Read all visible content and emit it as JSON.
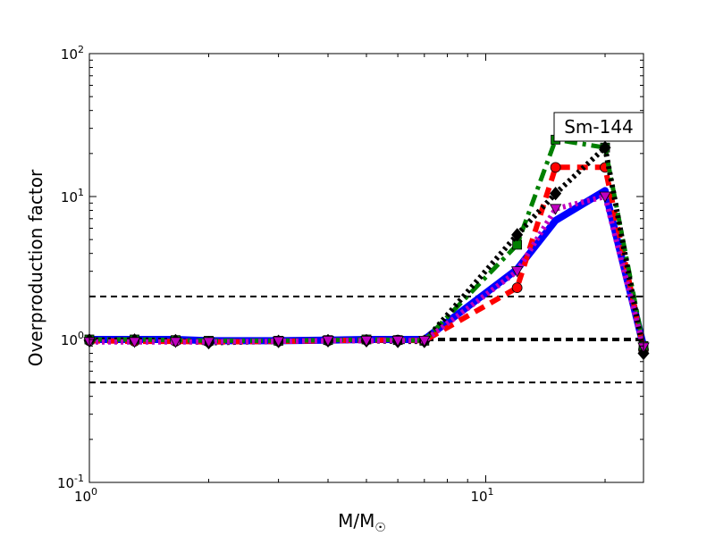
{
  "chart_data": {
    "type": "line",
    "title": "",
    "xlabel": "M/M",
    "xlabel_sub": "☉",
    "ylabel": "Overproduction factor",
    "xscale": "log",
    "yscale": "log",
    "xlim": [
      1,
      25
    ],
    "ylim": [
      0.1,
      100
    ],
    "x_ticks": [
      {
        "value": 1,
        "base": "10",
        "exp": "0"
      },
      {
        "value": 10,
        "base": "10",
        "exp": "1"
      }
    ],
    "y_ticks": [
      {
        "value": 0.1,
        "base": "10",
        "exp": "-1"
      },
      {
        "value": 1,
        "base": "10",
        "exp": "0"
      },
      {
        "value": 10,
        "base": "10",
        "exp": "1"
      },
      {
        "value": 100,
        "base": "10",
        "exp": "2"
      }
    ],
    "reference_lines": [
      {
        "y": 2.0,
        "style": "dashed",
        "color": "#000000",
        "weight": "thin"
      },
      {
        "y": 1.0,
        "style": "dashed",
        "color": "#000000",
        "weight": "thick"
      },
      {
        "y": 0.5,
        "style": "dashed",
        "color": "#000000",
        "weight": "thin"
      }
    ],
    "annotation": "Sm-144",
    "legend": "none",
    "grid": false,
    "series": [
      {
        "color": "#0000ff",
        "style": "solid",
        "marker": "none",
        "x": [
          1.0,
          1.3,
          1.65,
          2.0,
          3.0,
          4.0,
          5.0,
          6.0,
          7.0,
          12.0,
          15.0,
          20.0,
          25.0
        ],
        "y": [
          1.0,
          1.0,
          1.0,
          0.98,
          0.98,
          0.99,
          1.0,
          1.0,
          1.0,
          3.1,
          6.8,
          11.0,
          0.9
        ]
      },
      {
        "color": "#ff0000",
        "style": "dashed",
        "marker": "o",
        "x": [
          1.0,
          1.3,
          1.65,
          2.0,
          3.0,
          4.0,
          5.0,
          6.0,
          7.0,
          12.0,
          15.0,
          20.0,
          25.0
        ],
        "y": [
          0.98,
          0.97,
          0.97,
          0.96,
          0.97,
          0.98,
          0.99,
          0.99,
          0.98,
          2.3,
          16.0,
          16.0,
          0.85
        ]
      },
      {
        "color": "#008000",
        "style": "dashdot",
        "marker": "s",
        "x": [
          1.0,
          1.3,
          1.65,
          2.0,
          3.0,
          4.0,
          5.0,
          6.0,
          7.0,
          12.0,
          15.0,
          20.0,
          25.0
        ],
        "y": [
          1.0,
          1.0,
          0.99,
          0.98,
          0.98,
          0.99,
          1.0,
          0.99,
          0.98,
          4.6,
          25.0,
          22.0,
          0.9
        ]
      },
      {
        "color": "#000000",
        "style": "dotted",
        "marker": "D",
        "x": [
          1.0,
          1.3,
          1.65,
          2.0,
          3.0,
          4.0,
          5.0,
          6.0,
          7.0,
          12.0,
          15.0,
          20.0,
          25.0
        ],
        "y": [
          0.99,
          0.99,
          0.98,
          0.95,
          0.97,
          0.98,
          0.98,
          0.97,
          0.97,
          5.4,
          10.5,
          22.0,
          0.8
        ]
      },
      {
        "color": "#bf00bf",
        "style": "dotted",
        "marker": "v",
        "x": [
          1.0,
          1.3,
          1.65,
          2.0,
          3.0,
          4.0,
          5.0,
          6.0,
          7.0,
          12.0,
          15.0,
          20.0,
          25.0
        ],
        "y": [
          0.96,
          0.96,
          0.96,
          0.96,
          0.97,
          0.98,
          0.98,
          0.98,
          0.98,
          3.0,
          8.2,
          10.0,
          0.88
        ]
      }
    ]
  }
}
